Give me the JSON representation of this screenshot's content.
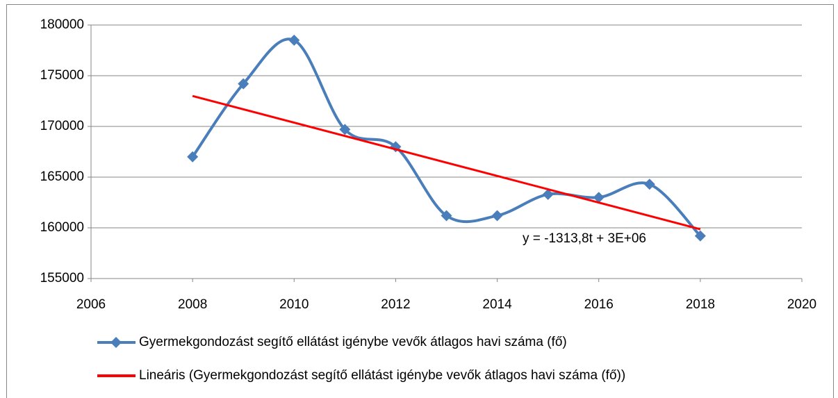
{
  "chart_data": {
    "type": "line",
    "x": [
      2008,
      2009,
      2010,
      2011,
      2012,
      2013,
      2014,
      2015,
      2016,
      2017,
      2018
    ],
    "series": [
      {
        "name": "Gyermekgondozást segítő ellátást igénybe vevők átlagos havi száma (fő)",
        "color": "#4a7ebb",
        "smooth": true,
        "marker": "diamond",
        "values": [
          167000,
          174200,
          178500,
          169700,
          168000,
          161200,
          161200,
          163300,
          163000,
          164300,
          159200
        ]
      }
    ],
    "trendline": {
      "name": "Lineáris (Gyermekgondozást segítő ellátást igénybe vevők átlagos havi száma (fő))",
      "color": "#ff0000",
      "x": [
        2008,
        2018
      ],
      "values": [
        173000,
        159860
      ],
      "equation": "y = -1313,8t + 3E+06"
    },
    "xlim": [
      2006,
      2020
    ],
    "xticks": [
      2006,
      2008,
      2010,
      2012,
      2014,
      2016,
      2018,
      2020
    ],
    "ylim": [
      155000,
      180000
    ],
    "yticks": [
      155000,
      160000,
      165000,
      170000,
      175000,
      180000
    ],
    "grid": true,
    "legend": "bottom"
  }
}
